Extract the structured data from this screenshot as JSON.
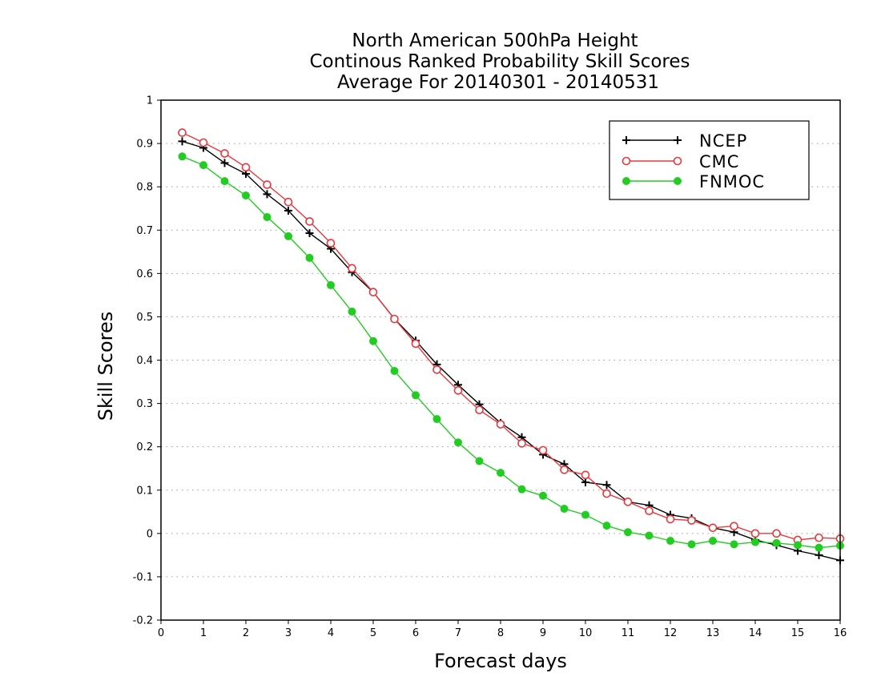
{
  "chart_data": {
    "type": "line",
    "title_lines": [
      "North American 500hPa Height",
      "Continous Ranked Probability Skill Scores",
      "Average For 20140301 - 20140531"
    ],
    "xlabel": "Forecast days",
    "ylabel": "Skill Scores",
    "xlim": [
      0,
      16
    ],
    "ylim": [
      -0.2,
      1
    ],
    "xticks": [
      "0",
      "1",
      "2",
      "3",
      "4",
      "5",
      "6",
      "7",
      "8",
      "9",
      "10",
      "11",
      "12",
      "13",
      "14",
      "15",
      "16"
    ],
    "yticks": [
      "1",
      "0.9",
      "0.8",
      "0.7",
      "0.6",
      "0.5",
      "0.4",
      "0.3",
      "0.2",
      "0.1",
      "0",
      "-0.1",
      "-0.2"
    ],
    "grid": "horizontal dotted",
    "legend_position": "top-right",
    "x": [
      0.5,
      1,
      1.5,
      2,
      2.5,
      3,
      3.5,
      4,
      4.5,
      5,
      5.5,
      6,
      6.5,
      7,
      7.5,
      8,
      8.5,
      9,
      9.5,
      10,
      10.5,
      11,
      11.5,
      12,
      12.5,
      13,
      13.5,
      14,
      14.5,
      15,
      15.5,
      16
    ],
    "series": [
      {
        "name": "NCEP",
        "color": "#000000",
        "marker": "plus",
        "values": [
          0.905,
          0.89,
          0.855,
          0.83,
          0.783,
          0.745,
          0.693,
          0.657,
          0.603,
          0.557,
          0.495,
          0.445,
          0.39,
          0.343,
          0.298,
          0.255,
          0.222,
          0.182,
          0.16,
          0.118,
          0.112,
          0.073,
          0.065,
          0.043,
          0.035,
          0.013,
          0.003,
          -0.015,
          -0.027,
          -0.04,
          -0.05,
          -0.062
        ]
      },
      {
        "name": "CMC",
        "color": "#e8383d",
        "marker": "circle-open",
        "values": [
          0.925,
          0.902,
          0.877,
          0.845,
          0.805,
          0.765,
          0.72,
          0.67,
          0.612,
          0.557,
          0.495,
          0.438,
          0.378,
          0.33,
          0.285,
          0.252,
          0.208,
          0.192,
          0.147,
          0.135,
          0.092,
          0.073,
          0.052,
          0.033,
          0.03,
          0.013,
          0.017,
          0.0,
          0.0,
          -0.015,
          -0.01,
          -0.012
        ]
      },
      {
        "name": "FNMOC",
        "color": "#22cc22",
        "marker": "circle-filled",
        "values": [
          0.87,
          0.85,
          0.813,
          0.78,
          0.73,
          0.686,
          0.636,
          0.573,
          0.512,
          0.444,
          0.375,
          0.319,
          0.264,
          0.21,
          0.167,
          0.14,
          0.102,
          0.087,
          0.057,
          0.043,
          0.018,
          0.003,
          -0.005,
          -0.017,
          -0.025,
          -0.017,
          -0.025,
          -0.02,
          -0.022,
          -0.027,
          -0.033,
          -0.028
        ]
      }
    ]
  }
}
